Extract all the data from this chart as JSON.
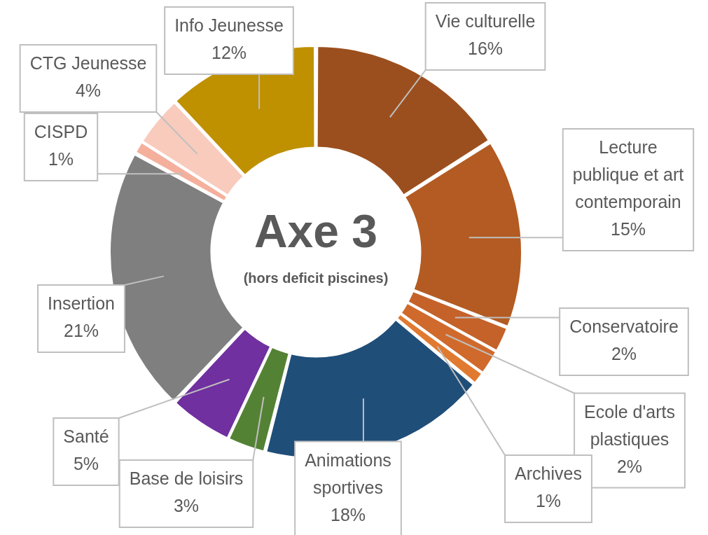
{
  "chart_data": {
    "type": "donut",
    "title": "Axe 3",
    "subtitle": "(hors deficit piscines)",
    "categories": [
      "Vie culturelle",
      "Lecture publique et art contemporain",
      "Conservatoire",
      "Ecole d'arts plastiques",
      "Archives",
      "Animations sportives",
      "Base de loisirs",
      "Santé",
      "Insertion",
      "CISPD",
      "CTG Jeunesse",
      "Info Jeunesse"
    ],
    "values": [
      16,
      15,
      2,
      2,
      1,
      18,
      3,
      5,
      21,
      1,
      4,
      12
    ],
    "value_labels": [
      "16%",
      "15%",
      "2%",
      "2%",
      "1%",
      "18%",
      "3%",
      "5%",
      "21%",
      "1%",
      "4%",
      "12%"
    ],
    "colors": [
      "#9c4f1e",
      "#b35b22",
      "#c4622a",
      "#d06a2c",
      "#e07a30",
      "#1f4e79",
      "#548235",
      "#7030a0",
      "#7f7f7f",
      "#f4b09c",
      "#f8cbbd",
      "#bf9000"
    ]
  }
}
